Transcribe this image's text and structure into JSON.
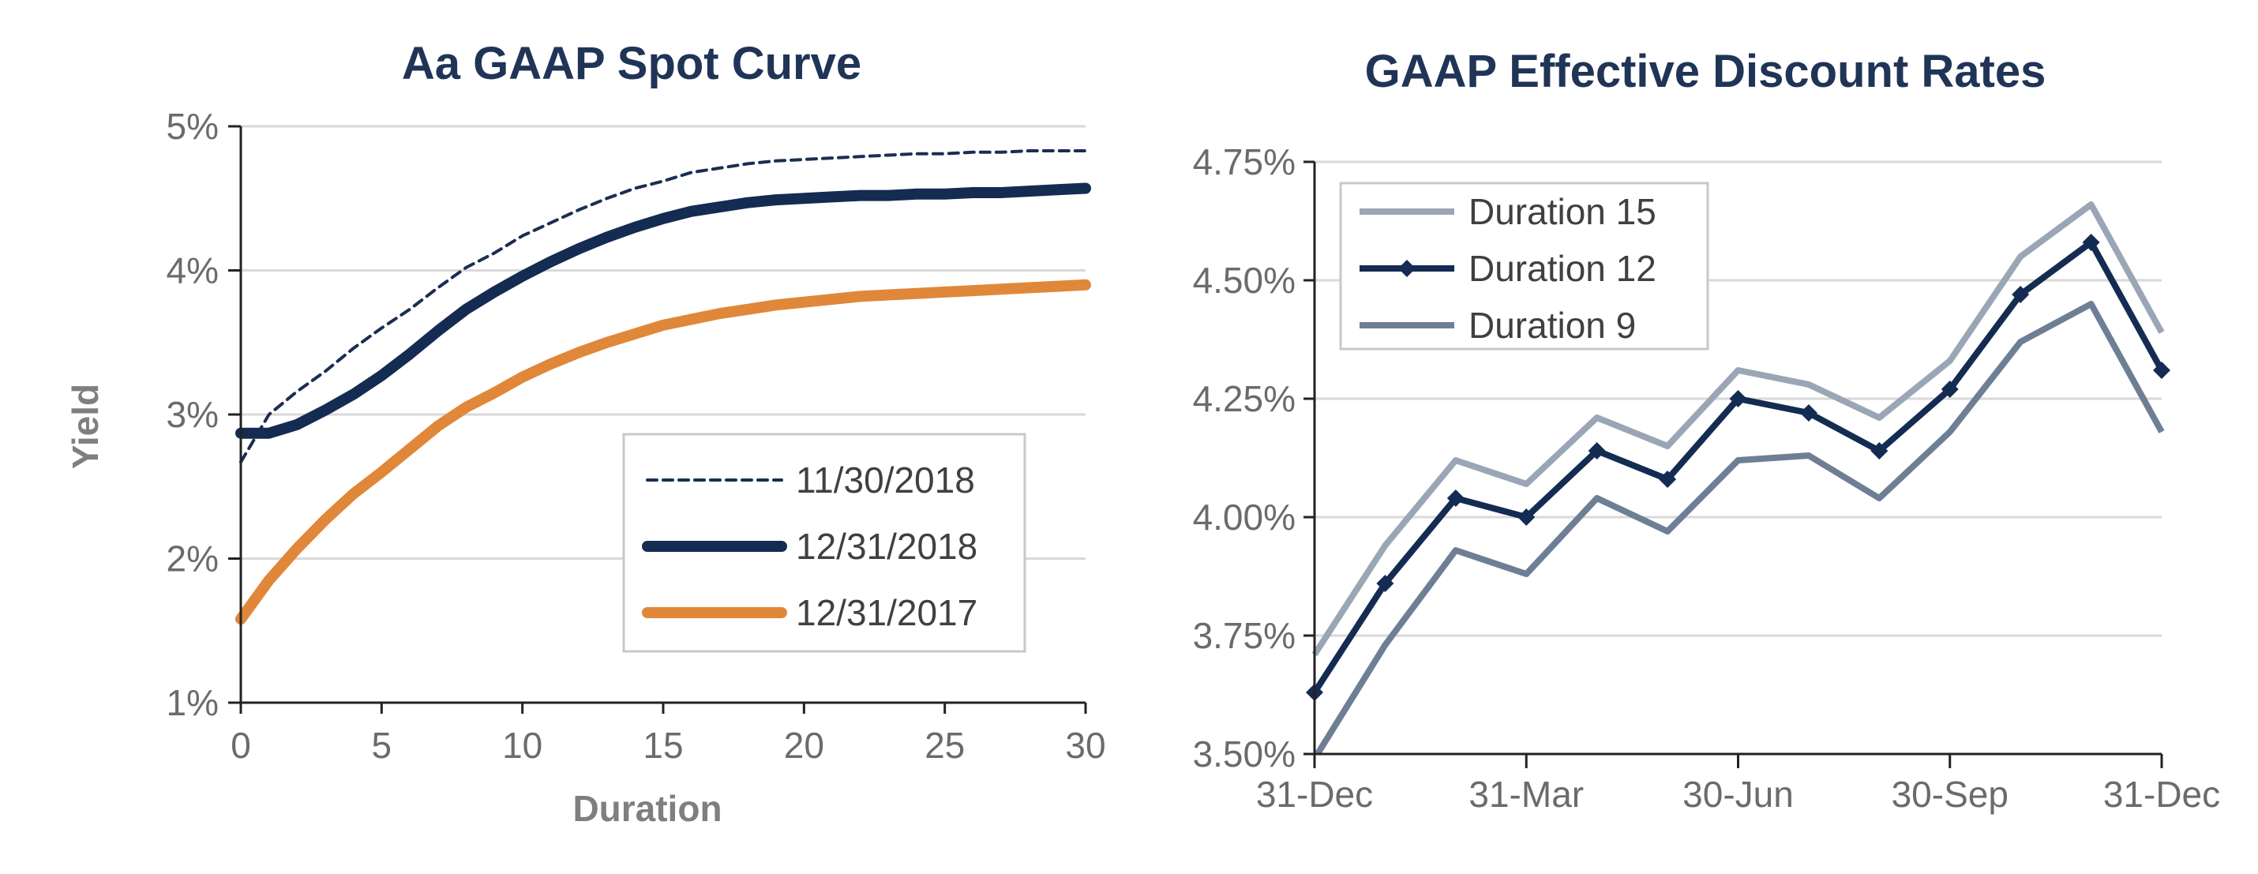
{
  "chart_data": [
    {
      "type": "line",
      "title": "Aa GAAP Spot Curve",
      "xlabel": "Duration",
      "ylabel": "Yield",
      "xlim": [
        0,
        30
      ],
      "ylim": [
        1,
        5
      ],
      "x_ticks": [
        0,
        5,
        10,
        15,
        20,
        25,
        30
      ],
      "y_ticks": [
        1,
        2,
        3,
        4,
        5
      ],
      "y_tick_labels": [
        "1%",
        "2%",
        "3%",
        "4%",
        "5%"
      ],
      "grid": true,
      "legend_position": "lower-right",
      "series": [
        {
          "name": "11/30/2018",
          "color": "#1a2e52",
          "style": "dashed",
          "x": [
            0,
            1,
            2,
            3,
            4,
            5,
            6,
            7,
            8,
            9,
            10,
            11,
            12,
            13,
            14,
            15,
            16,
            17,
            18,
            19,
            20,
            21,
            22,
            23,
            24,
            25,
            26,
            27,
            28,
            29,
            30
          ],
          "y": [
            2.67,
            3.0,
            3.16,
            3.3,
            3.46,
            3.6,
            3.73,
            3.88,
            4.02,
            4.12,
            4.24,
            4.33,
            4.42,
            4.5,
            4.57,
            4.62,
            4.68,
            4.71,
            4.74,
            4.76,
            4.77,
            4.78,
            4.79,
            4.8,
            4.81,
            4.81,
            4.82,
            4.82,
            4.83,
            4.83,
            4.83
          ]
        },
        {
          "name": "12/31/2018",
          "color": "#142b52",
          "style": "thick",
          "x": [
            0,
            1,
            2,
            3,
            4,
            5,
            6,
            7,
            8,
            9,
            10,
            11,
            12,
            13,
            14,
            15,
            16,
            17,
            18,
            19,
            20,
            21,
            22,
            23,
            24,
            25,
            26,
            27,
            28,
            29,
            30
          ],
          "y": [
            2.87,
            2.87,
            2.93,
            3.03,
            3.14,
            3.27,
            3.42,
            3.58,
            3.73,
            3.85,
            3.96,
            4.06,
            4.15,
            4.23,
            4.3,
            4.36,
            4.41,
            4.44,
            4.47,
            4.49,
            4.5,
            4.51,
            4.52,
            4.52,
            4.53,
            4.53,
            4.54,
            4.54,
            4.55,
            4.56,
            4.57
          ]
        },
        {
          "name": "12/31/2017",
          "color": "#e0873a",
          "style": "thick",
          "x": [
            0,
            1,
            2,
            3,
            4,
            5,
            6,
            7,
            8,
            9,
            10,
            11,
            12,
            13,
            14,
            15,
            16,
            17,
            18,
            19,
            20,
            21,
            22,
            23,
            24,
            25,
            26,
            27,
            28,
            29,
            30
          ],
          "y": [
            1.58,
            1.85,
            2.07,
            2.27,
            2.45,
            2.6,
            2.76,
            2.92,
            3.05,
            3.15,
            3.26,
            3.35,
            3.43,
            3.5,
            3.56,
            3.62,
            3.66,
            3.7,
            3.73,
            3.76,
            3.78,
            3.8,
            3.82,
            3.83,
            3.84,
            3.85,
            3.86,
            3.87,
            3.88,
            3.89,
            3.9
          ]
        }
      ]
    },
    {
      "type": "line",
      "title": "GAAP Effective Discount Rates",
      "xlabel": "",
      "ylabel": "",
      "categories": [
        "31-Dec",
        "",
        "",
        "31-Mar",
        "",
        "",
        "30-Jun",
        "",
        "",
        "30-Sep",
        "",
        "",
        "31-Dec"
      ],
      "x_tick_labels": [
        "31-Dec",
        "31-Mar",
        "30-Jun",
        "30-Sep",
        "31-Dec"
      ],
      "ylim": [
        3.5,
        4.75
      ],
      "y_ticks": [
        3.5,
        3.75,
        4.0,
        4.25,
        4.5,
        4.75
      ],
      "y_tick_labels": [
        "3.50%",
        "3.75%",
        "4.00%",
        "4.25%",
        "4.50%",
        "4.75%"
      ],
      "grid": true,
      "legend_position": "top-left",
      "series": [
        {
          "name": "Duration 15",
          "color": "#9aa6b5",
          "marker": "none",
          "values": [
            3.71,
            3.94,
            4.12,
            4.07,
            4.21,
            4.15,
            4.31,
            4.28,
            4.21,
            4.33,
            4.55,
            4.66,
            4.39
          ]
        },
        {
          "name": "Duration 12",
          "color": "#142b52",
          "marker": "diamond",
          "values": [
            3.63,
            3.86,
            4.04,
            4.0,
            4.14,
            4.08,
            4.25,
            4.22,
            4.14,
            4.27,
            4.47,
            4.58,
            4.31
          ]
        },
        {
          "name": "Duration 9",
          "color": "#6e7f95",
          "marker": "none",
          "values": [
            3.49,
            3.73,
            3.93,
            3.88,
            4.04,
            3.97,
            4.12,
            4.13,
            4.04,
            4.18,
            4.37,
            4.45,
            4.18
          ]
        }
      ]
    }
  ]
}
